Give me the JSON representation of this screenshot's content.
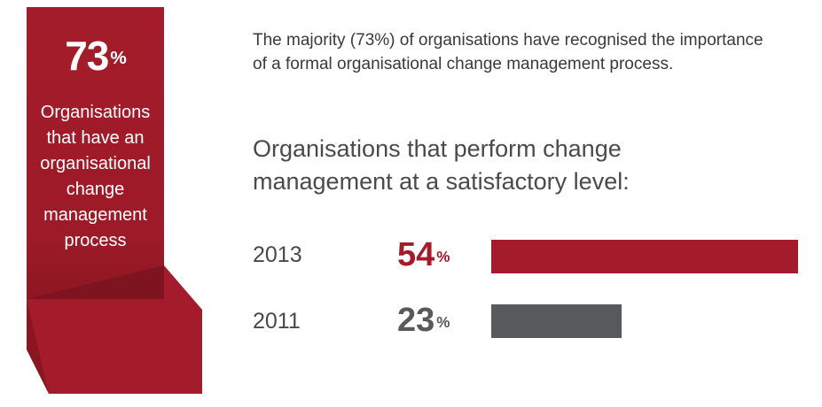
{
  "colors": {
    "accent": "#a41c2b",
    "secondary": "#58595b"
  },
  "banner": {
    "value": "73",
    "unit": "%",
    "caption_lines": [
      "Organisations",
      "that have an",
      "organisational",
      "change",
      "management",
      "process"
    ]
  },
  "intro_lines": [
    "The majority (73%) of organisations have recognised the importance",
    "of a formal organisational change management process."
  ],
  "subheading_lines": [
    "Organisations that perform change",
    "management at a satisfactory level:"
  ],
  "chart_data": {
    "type": "bar",
    "orientation": "horizontal",
    "categories": [
      "2013",
      "2011"
    ],
    "values": [
      54,
      23
    ],
    "data_labels": [
      "54",
      "23"
    ],
    "unit": "%",
    "bar_colors": [
      "#a41c2b",
      "#58595b"
    ],
    "xlim": [
      0,
      54
    ],
    "title": "",
    "xlabel": "",
    "ylabel": ""
  }
}
